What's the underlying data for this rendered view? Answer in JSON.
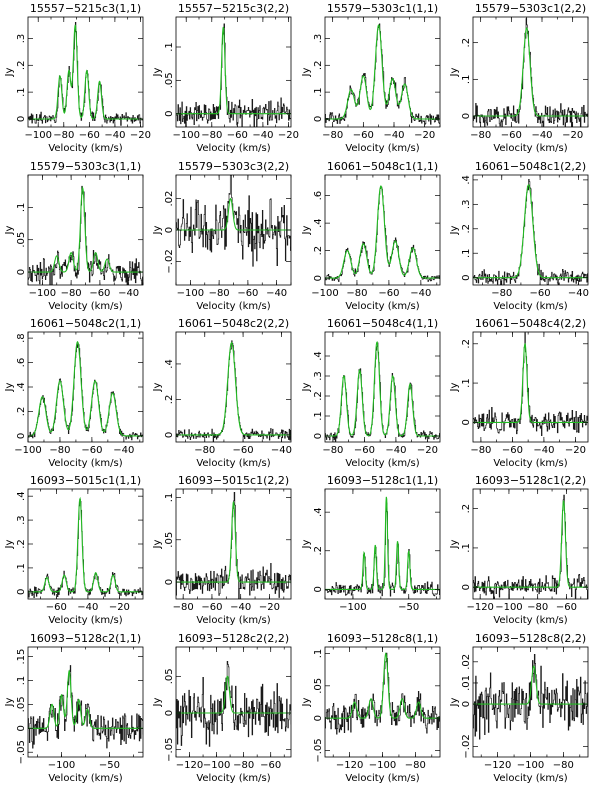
{
  "colors": {
    "observed": "#1a1a1a",
    "fit": "#22bb22",
    "frame": "#000000"
  },
  "chart_data": [
    {
      "type": "line",
      "title": "15557−5215c3(1,1)",
      "xlabel": "Velocity (km/s)",
      "ylabel": "Jy",
      "xlim": [
        -108,
        -18
      ],
      "ylim": [
        -0.03,
        0.38
      ],
      "xticks": [
        -100,
        -80,
        -60,
        -40,
        -20
      ],
      "yticks": [
        0,
        0.1,
        0.2,
        0.3
      ],
      "noise": 0.012,
      "lines": [
        {
          "v": -83,
          "a": 0.16,
          "w": 1.5
        },
        {
          "v": -76,
          "a": 0.18,
          "w": 1.5
        },
        {
          "v": -71,
          "a": 0.35,
          "w": 1.5
        },
        {
          "v": -62,
          "a": 0.18,
          "w": 1.5
        },
        {
          "v": -52,
          "a": 0.14,
          "w": 1.5
        }
      ]
    },
    {
      "type": "line",
      "title": "15557−5215c3(2,2)",
      "xlabel": "Velocity (km/s)",
      "ylabel": "Jy",
      "xlim": [
        -108,
        -18
      ],
      "ylim": [
        -0.02,
        0.145
      ],
      "xticks": [
        -100,
        -80,
        -60,
        -40,
        -20
      ],
      "yticks": [
        0,
        0.05,
        0.1
      ],
      "noise": 0.012,
      "lines": [
        {
          "v": -71,
          "a": 0.13,
          "w": 1.3
        }
      ]
    },
    {
      "type": "line",
      "title": "15579−5303c1(1,1)",
      "xlabel": "Velocity (km/s)",
      "ylabel": "Jy",
      "xlim": [
        -85,
        -10
      ],
      "ylim": [
        -0.03,
        0.38
      ],
      "xticks": [
        -80,
        -60,
        -40,
        -20
      ],
      "yticks": [
        0,
        0.1,
        0.2,
        0.3
      ],
      "noise": 0.015,
      "lines": [
        {
          "v": -68,
          "a": 0.11,
          "w": 2.2
        },
        {
          "v": -60,
          "a": 0.16,
          "w": 2.2
        },
        {
          "v": -50,
          "a": 0.35,
          "w": 2.2
        },
        {
          "v": -41,
          "a": 0.15,
          "w": 2.2
        },
        {
          "v": -33,
          "a": 0.13,
          "w": 2.2
        }
      ]
    },
    {
      "type": "line",
      "title": "15579−5303c1(2,2)",
      "xlabel": "Velocity (km/s)",
      "ylabel": "Jy",
      "xlim": [
        -85,
        -10
      ],
      "ylim": [
        -0.03,
        0.27
      ],
      "xticks": [
        -80,
        -60,
        -40,
        -20
      ],
      "yticks": [
        0,
        0.1,
        0.2
      ],
      "noise": 0.018,
      "lines": [
        {
          "v": -50,
          "a": 0.24,
          "w": 2.2
        }
      ]
    },
    {
      "type": "line",
      "title": "15579−5303c3(1,1)",
      "xlabel": "Velocity (km/s)",
      "ylabel": "Jy",
      "xlim": [
        -110,
        -30
      ],
      "ylim": [
        -0.02,
        0.15
      ],
      "xticks": [
        -100,
        -80,
        -60,
        -40
      ],
      "yticks": [
        0,
        0.05,
        0.1
      ],
      "noise": 0.012,
      "lines": [
        {
          "v": -90,
          "a": 0.025,
          "w": 1.5
        },
        {
          "v": -80,
          "a": 0.03,
          "w": 1.5
        },
        {
          "v": -72,
          "a": 0.13,
          "w": 1.5
        },
        {
          "v": -63,
          "a": 0.03,
          "w": 1.5
        },
        {
          "v": -55,
          "a": 0.02,
          "w": 1.5
        }
      ]
    },
    {
      "type": "line",
      "title": "15579−5303c3(2,2)",
      "xlabel": "Velocity (km/s)",
      "ylabel": "Jy",
      "xlim": [
        -110,
        -30
      ],
      "ylim": [
        -0.035,
        0.035
      ],
      "xticks": [
        -100,
        -80,
        -60,
        -40
      ],
      "yticks": [
        -0.02,
        0,
        0.02
      ],
      "noise": 0.011,
      "lines": [
        {
          "v": -72,
          "a": 0.02,
          "w": 1.5
        }
      ]
    },
    {
      "type": "line",
      "title": "16061−5048c1(1,1)",
      "xlabel": "Velocity (km/s)",
      "ylabel": "Jy",
      "xlim": [
        -100,
        -28
      ],
      "ylim": [
        -0.05,
        0.75
      ],
      "xticks": [
        -100,
        -80,
        -60,
        -40
      ],
      "yticks": [
        0,
        0.2,
        0.4,
        0.6
      ],
      "noise": 0.02,
      "lines": [
        {
          "v": -86,
          "a": 0.2,
          "w": 2.2
        },
        {
          "v": -76,
          "a": 0.25,
          "w": 2.2
        },
        {
          "v": -65,
          "a": 0.67,
          "w": 2.2
        },
        {
          "v": -56,
          "a": 0.27,
          "w": 2.2
        },
        {
          "v": -45,
          "a": 0.22,
          "w": 2.2
        }
      ]
    },
    {
      "type": "line",
      "title": "16061−5048c1(2,2)",
      "xlabel": "Velocity (km/s)",
      "ylabel": "Jy",
      "xlim": [
        -95,
        -35
      ],
      "ylim": [
        -0.03,
        0.42
      ],
      "xticks": [
        -80,
        -60,
        -40
      ],
      "yticks": [
        0,
        0.1,
        0.2,
        0.3,
        0.4
      ],
      "noise": 0.018,
      "lines": [
        {
          "v": -66,
          "a": 0.38,
          "w": 2.2
        }
      ]
    },
    {
      "type": "line",
      "title": "16061−5048c2(1,1)",
      "xlabel": "Velocity (km/s)",
      "ylabel": "Jy",
      "xlim": [
        -100,
        -28
      ],
      "ylim": [
        -0.05,
        0.85
      ],
      "xticks": [
        -100,
        -80,
        -60,
        -40
      ],
      "yticks": [
        0,
        0.2,
        0.4,
        0.6,
        0.8
      ],
      "noise": 0.02,
      "lines": [
        {
          "v": -91,
          "a": 0.32,
          "w": 2.2
        },
        {
          "v": -80,
          "a": 0.45,
          "w": 2.2
        },
        {
          "v": -69,
          "a": 0.77,
          "w": 2.2
        },
        {
          "v": -58,
          "a": 0.45,
          "w": 2.2
        },
        {
          "v": -47,
          "a": 0.35,
          "w": 2.2
        }
      ]
    },
    {
      "type": "line",
      "title": "16061−5048c2(2,2)",
      "xlabel": "Velocity (km/s)",
      "ylabel": "Jy",
      "xlim": [
        -95,
        -35
      ],
      "ylim": [
        -0.04,
        0.58
      ],
      "xticks": [
        -80,
        -60,
        -40
      ],
      "yticks": [
        0,
        0.2,
        0.4
      ],
      "noise": 0.018,
      "lines": [
        {
          "v": -66,
          "a": 0.52,
          "w": 2.0
        }
      ]
    },
    {
      "type": "line",
      "title": "16061−5048c4(1,1)",
      "xlabel": "Velocity (km/s)",
      "ylabel": "Jy",
      "xlim": [
        -85,
        -12
      ],
      "ylim": [
        -0.03,
        0.52
      ],
      "xticks": [
        -80,
        -60,
        -40,
        -20
      ],
      "yticks": [
        0,
        0.1,
        0.2,
        0.3,
        0.4
      ],
      "noise": 0.015,
      "lines": [
        {
          "v": -73,
          "a": 0.3,
          "w": 1.6
        },
        {
          "v": -63,
          "a": 0.33,
          "w": 1.6
        },
        {
          "v": -52,
          "a": 0.47,
          "w": 1.6
        },
        {
          "v": -42,
          "a": 0.3,
          "w": 1.6
        },
        {
          "v": -31,
          "a": 0.26,
          "w": 1.6
        }
      ]
    },
    {
      "type": "line",
      "title": "16061−5048c4(2,2)",
      "xlabel": "Velocity (km/s)",
      "ylabel": "Jy",
      "xlim": [
        -85,
        -12
      ],
      "ylim": [
        -0.05,
        0.23
      ],
      "xticks": [
        -80,
        -60,
        -40,
        -20
      ],
      "yticks": [
        0,
        0.1,
        0.2
      ],
      "noise": 0.018,
      "lines": [
        {
          "v": -52,
          "a": 0.2,
          "w": 1.3
        }
      ]
    },
    {
      "type": "line",
      "title": "16093−5015c1(1,1)",
      "xlabel": "Velocity (km/s)",
      "ylabel": "Jy",
      "xlim": [
        -78,
        -5
      ],
      "ylim": [
        -0.03,
        0.43
      ],
      "xticks": [
        -60,
        -40,
        -20
      ],
      "yticks": [
        0,
        0.1,
        0.2,
        0.3,
        0.4
      ],
      "noise": 0.012,
      "lines": [
        {
          "v": -66,
          "a": 0.06,
          "w": 1.3
        },
        {
          "v": -55,
          "a": 0.07,
          "w": 1.3
        },
        {
          "v": -45,
          "a": 0.39,
          "w": 1.3
        },
        {
          "v": -35,
          "a": 0.08,
          "w": 1.3
        },
        {
          "v": -24,
          "a": 0.07,
          "w": 1.3
        }
      ]
    },
    {
      "type": "line",
      "title": "16093−5015c1(2,2)",
      "xlabel": "Velocity (km/s)",
      "ylabel": "Jy",
      "xlim": [
        -85,
        -5
      ],
      "ylim": [
        -0.02,
        0.11
      ],
      "xticks": [
        -80,
        -60,
        -40,
        -20
      ],
      "yticks": [
        0,
        0.05,
        0.1
      ],
      "noise": 0.01,
      "lines": [
        {
          "v": -45,
          "a": 0.095,
          "w": 1.3
        }
      ]
    },
    {
      "type": "line",
      "title": "16093−5128c1(1,1)",
      "xlabel": "",
      "ylabel": "Jy",
      "xlim": [
        -125,
        -22
      ],
      "ylim": [
        -0.05,
        0.52
      ],
      "xticks": [
        -100,
        -50
      ],
      "yticks": [
        0,
        0.2,
        0.4
      ],
      "noise": 0.02,
      "lines": [
        {
          "v": -90,
          "a": 0.19,
          "w": 1.0
        },
        {
          "v": -80,
          "a": 0.23,
          "w": 1.0
        },
        {
          "v": -70,
          "a": 0.48,
          "w": 1.0
        },
        {
          "v": -60,
          "a": 0.25,
          "w": 1.0
        },
        {
          "v": -50,
          "a": 0.2,
          "w": 1.0
        }
      ]
    },
    {
      "type": "line",
      "title": "16093−5128c1(2,2)",
      "xlabel": "Velocity (km/s)",
      "ylabel": "Jy",
      "xlim": [
        -125,
        -45
      ],
      "ylim": [
        -0.03,
        0.25
      ],
      "xticks": [
        -120,
        -100,
        -80,
        -60
      ],
      "yticks": [
        0,
        0.1,
        0.2
      ],
      "noise": 0.015,
      "lines": [
        {
          "v": -62,
          "a": 0.22,
          "w": 1.3
        }
      ]
    },
    {
      "type": "line",
      "title": "16093−5128c2(1,1)",
      "xlabel": "Velocity (km/s)",
      "ylabel": "Jy",
      "xlim": [
        -135,
        -15
      ],
      "ylim": [
        -0.06,
        0.17
      ],
      "xticks": [
        -100,
        -50
      ],
      "yticks": [
        -0.05,
        0,
        0.05,
        0.1,
        0.15
      ],
      "noise": 0.022,
      "lines": [
        {
          "v": -110,
          "a": 0.05,
          "w": 2.0
        },
        {
          "v": -100,
          "a": 0.07,
          "w": 2.0
        },
        {
          "v": -92,
          "a": 0.12,
          "w": 2.0
        },
        {
          "v": -82,
          "a": 0.06,
          "w": 2.0
        },
        {
          "v": -73,
          "a": 0.04,
          "w": 2.0
        }
      ]
    },
    {
      "type": "line",
      "title": "16093−5128c2(2,2)",
      "xlabel": "Velocity (km/s)",
      "ylabel": "Jy",
      "xlim": [
        -130,
        -45
      ],
      "ylim": [
        -0.06,
        0.09
      ],
      "xticks": [
        -120,
        -100,
        -80,
        -60
      ],
      "yticks": [
        -0.05,
        0,
        0.05
      ],
      "noise": 0.022,
      "lines": [
        {
          "v": -92,
          "a": 0.05,
          "w": 1.5
        }
      ]
    },
    {
      "type": "line",
      "title": "16093−5128c8(1,1)",
      "xlabel": "Velocity (km/s)",
      "ylabel": "Jy",
      "xlim": [
        -135,
        -65
      ],
      "ylim": [
        -0.06,
        0.11
      ],
      "xticks": [
        -120,
        -100,
        -80
      ],
      "yticks": [
        -0.05,
        0,
        0.05,
        0.1
      ],
      "noise": 0.013,
      "lines": [
        {
          "v": -117,
          "a": 0.025,
          "w": 1.3
        },
        {
          "v": -107,
          "a": 0.03,
          "w": 1.3
        },
        {
          "v": -98,
          "a": 0.1,
          "w": 1.3
        },
        {
          "v": -88,
          "a": 0.03,
          "w": 1.3
        },
        {
          "v": -78,
          "a": 0.025,
          "w": 1.3
        }
      ]
    },
    {
      "type": "line",
      "title": "16093−5128c8(2,2)",
      "xlabel": "Velocity (km/s)",
      "ylabel": "Jy",
      "xlim": [
        -135,
        -65
      ],
      "ylim": [
        -0.025,
        0.027
      ],
      "xticks": [
        -120,
        -100,
        -80
      ],
      "yticks": [
        -0.02,
        0,
        0.01,
        0.02
      ],
      "noise": 0.008,
      "lines": [
        {
          "v": -98,
          "a": 0.018,
          "w": 1.3
        }
      ]
    }
  ]
}
